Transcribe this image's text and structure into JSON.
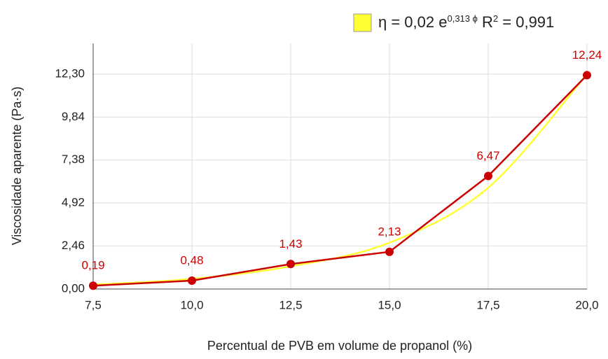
{
  "chart_data": {
    "type": "line",
    "x_label": "Percentual de PVB em volume de propanol (%)",
    "y_label": "Viscosidade aparente (Pa·s)",
    "legend_parts": [
      "η = 0,02 e",
      "0,313 ϕ",
      " R",
      "2",
      " = 0,991"
    ],
    "series": [
      {
        "name": "fit",
        "color": "#ffff33",
        "smooth": true,
        "x": [
          7.5,
          10,
          12.5,
          15,
          17.5,
          20
        ],
        "values": [
          0.25,
          0.58,
          1.3,
          2.65,
          5.8,
          12.3
        ]
      },
      {
        "name": "data",
        "color": "#cc0000",
        "markers": true,
        "x": [
          7.5,
          10,
          12.5,
          15,
          17.5,
          20
        ],
        "values": [
          0.19,
          0.48,
          1.43,
          2.13,
          6.47,
          12.24
        ],
        "value_labels": [
          "0,19",
          "0,48",
          "1,43",
          "2,13",
          "6,47",
          "12,24"
        ]
      }
    ],
    "xlim": [
      7.5,
      20
    ],
    "xticks": [
      {
        "value": 7.5,
        "label": "7,5"
      },
      {
        "value": 10,
        "label": "10,0"
      },
      {
        "value": 12.5,
        "label": "12,5"
      },
      {
        "value": 15,
        "label": "15,0"
      },
      {
        "value": 17.5,
        "label": "17,5"
      },
      {
        "value": 20,
        "label": "20,0"
      }
    ],
    "ylim": [
      0,
      14.06
    ],
    "yticks": [
      {
        "value": 0,
        "label": "0,00"
      },
      {
        "value": 2.46,
        "label": "2,46"
      },
      {
        "value": 4.92,
        "label": "4,92"
      },
      {
        "value": 7.38,
        "label": "7,38"
      },
      {
        "value": 9.84,
        "label": "9,84"
      },
      {
        "value": 12.3,
        "label": "12,30"
      }
    ],
    "grid": true
  }
}
